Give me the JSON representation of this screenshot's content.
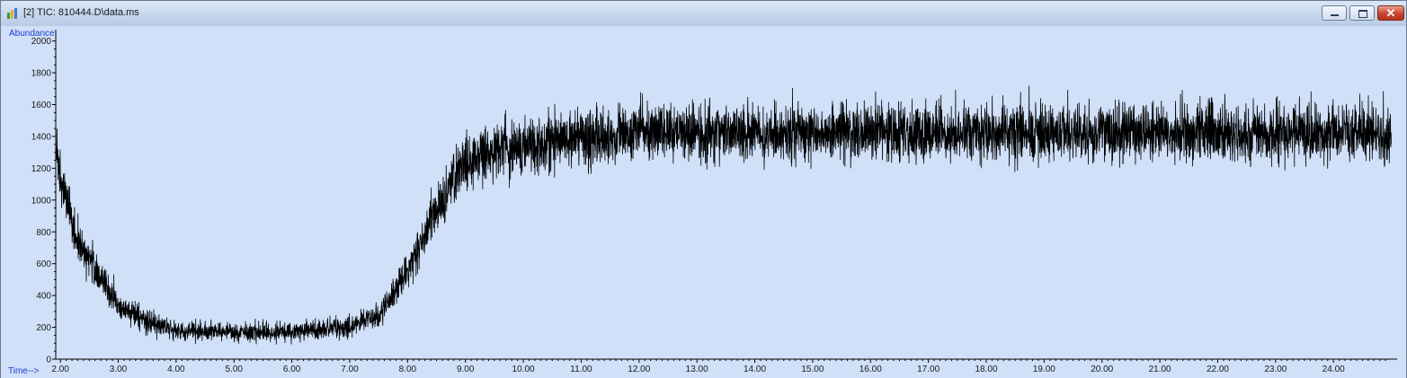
{
  "window": {
    "title": "[2] TIC: 810444.D\\data.ms",
    "min_icon": "minimize-icon",
    "max_icon": "maximize-icon",
    "close_icon": "close-icon",
    "close_glyph": "✕"
  },
  "colors": {
    "plot_background": "#cfe0f8",
    "trace": "#000000",
    "axis_label_text": "#1f3fd0"
  },
  "chart_data": {
    "type": "line",
    "ylabel": "Abundance",
    "xlabel": "Time-->",
    "xlim": [
      1.92,
      25.1
    ],
    "ylim": [
      0,
      2060
    ],
    "x_ticks": [
      "2.00",
      "3.00",
      "4.00",
      "5.00",
      "6.00",
      "7.00",
      "8.00",
      "9.00",
      "10.00",
      "11.00",
      "12.00",
      "13.00",
      "14.00",
      "15.00",
      "16.00",
      "17.00",
      "18.00",
      "19.00",
      "20.00",
      "21.00",
      "22.00",
      "23.00",
      "24.00"
    ],
    "y_ticks": [
      "0",
      "200",
      "400",
      "600",
      "800",
      "1000",
      "1200",
      "1400",
      "1600",
      "1800",
      "2000"
    ],
    "grid": false,
    "series": [
      {
        "baseline_profile_x": [
          1.93,
          2.0,
          2.3,
          2.7,
          3.0,
          3.5,
          4.0,
          5.0,
          6.0,
          7.0,
          7.5,
          8.0,
          8.5,
          9.0,
          9.5,
          10.0,
          11.0,
          12.0,
          25.0
        ],
        "baseline_profile_y": [
          1300,
          1100,
          750,
          500,
          330,
          230,
          180,
          170,
          170,
          200,
          280,
          550,
          950,
          1250,
          1330,
          1350,
          1400,
          1420,
          1420
        ],
        "noise_amplitude_at_baseline_1400": 230
      }
    ]
  }
}
